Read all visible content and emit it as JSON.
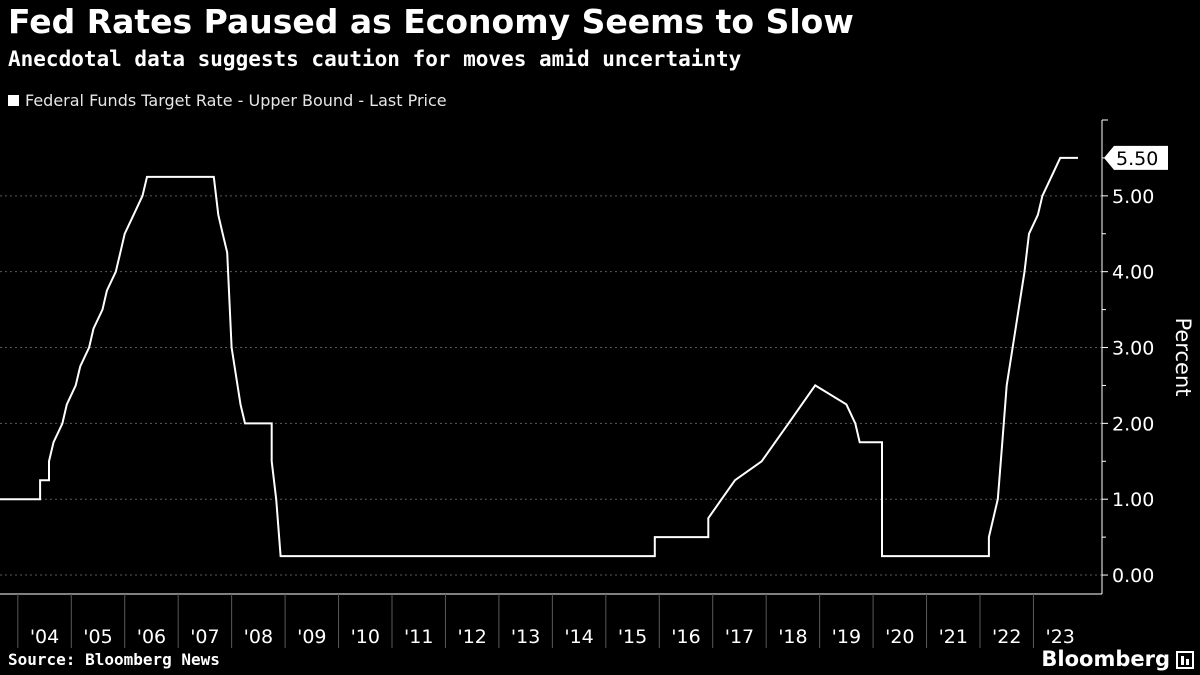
{
  "header": {
    "title": "Fed Rates Paused as Economy Seems to Slow",
    "subtitle": "Anecdotal data suggests caution for moves amid uncertainty"
  },
  "footer": {
    "source": "Source: Bloomberg News",
    "brand": "Bloomberg"
  },
  "colors": {
    "background": "#000000",
    "line": "#ffffff",
    "grid": "#5a5a5a"
  },
  "chart_data": {
    "type": "line",
    "title": "Fed Rates Paused as Economy Seems to Slow",
    "subtitle": "Anecdotal data suggests caution for moves amid uncertainty",
    "ylabel": "Percent",
    "xlabel": "",
    "ylim": [
      -0.25,
      6.0
    ],
    "xlim": [
      "2003-09",
      "2023-11"
    ],
    "y_ticks": [
      0,
      1,
      2,
      3,
      4,
      5
    ],
    "y_tick_labels": [
      "0.00",
      "1.00",
      "2.00",
      "3.00",
      "4.00",
      "5.00"
    ],
    "x_tick_labels": [
      "'04",
      "'05",
      "'06",
      "'07",
      "'08",
      "'09",
      "'10",
      "'11",
      "'12",
      "'13",
      "'14",
      "'15",
      "'16",
      "'17",
      "'18",
      "'19",
      "'20",
      "'21",
      "'22",
      "'23"
    ],
    "grid": "dotted horizontal",
    "legend": "top-left",
    "last_value_label": "5.50",
    "series": [
      {
        "name": "Federal Funds Target Rate - Upper Bound - Last Price",
        "points": [
          [
            "2003-09",
            1.0
          ],
          [
            "2004-06",
            1.0
          ],
          [
            "2004-06",
            1.25
          ],
          [
            "2004-08",
            1.25
          ],
          [
            "2004-08",
            1.5
          ],
          [
            "2004-09",
            1.75
          ],
          [
            "2004-11",
            2.0
          ],
          [
            "2004-12",
            2.25
          ],
          [
            "2005-02",
            2.5
          ],
          [
            "2005-03",
            2.75
          ],
          [
            "2005-05",
            3.0
          ],
          [
            "2005-06",
            3.25
          ],
          [
            "2005-08",
            3.5
          ],
          [
            "2005-09",
            3.75
          ],
          [
            "2005-11",
            4.0
          ],
          [
            "2005-12",
            4.25
          ],
          [
            "2006-01",
            4.5
          ],
          [
            "2006-03",
            4.75
          ],
          [
            "2006-05",
            5.0
          ],
          [
            "2006-06",
            5.25
          ],
          [
            "2007-09",
            5.25
          ],
          [
            "2007-10",
            4.75
          ],
          [
            "2007-11",
            4.5
          ],
          [
            "2007-12",
            4.25
          ],
          [
            "2008-01",
            3.0
          ],
          [
            "2008-03",
            2.25
          ],
          [
            "2008-04",
            2.0
          ],
          [
            "2008-10",
            2.0
          ],
          [
            "2008-10",
            1.5
          ],
          [
            "2008-11",
            1.0
          ],
          [
            "2008-12",
            0.25
          ],
          [
            "2015-12",
            0.25
          ],
          [
            "2015-12",
            0.5
          ],
          [
            "2016-12",
            0.5
          ],
          [
            "2016-12",
            0.75
          ],
          [
            "2017-03",
            1.0
          ],
          [
            "2017-06",
            1.25
          ],
          [
            "2017-12",
            1.5
          ],
          [
            "2018-03",
            1.75
          ],
          [
            "2018-06",
            2.0
          ],
          [
            "2018-09",
            2.25
          ],
          [
            "2018-12",
            2.5
          ],
          [
            "2019-07",
            2.25
          ],
          [
            "2019-09",
            2.0
          ],
          [
            "2019-10",
            1.75
          ],
          [
            "2020-03",
            1.75
          ],
          [
            "2020-03",
            1.0
          ],
          [
            "2020-03",
            0.25
          ],
          [
            "2022-03",
            0.25
          ],
          [
            "2022-03",
            0.5
          ],
          [
            "2022-05",
            1.0
          ],
          [
            "2022-06",
            1.75
          ],
          [
            "2022-07",
            2.5
          ],
          [
            "2022-09",
            3.25
          ],
          [
            "2022-11",
            4.0
          ],
          [
            "2022-12",
            4.5
          ],
          [
            "2023-02",
            4.75
          ],
          [
            "2023-03",
            5.0
          ],
          [
            "2023-05",
            5.25
          ],
          [
            "2023-07",
            5.5
          ],
          [
            "2023-11",
            5.5
          ]
        ]
      }
    ]
  }
}
